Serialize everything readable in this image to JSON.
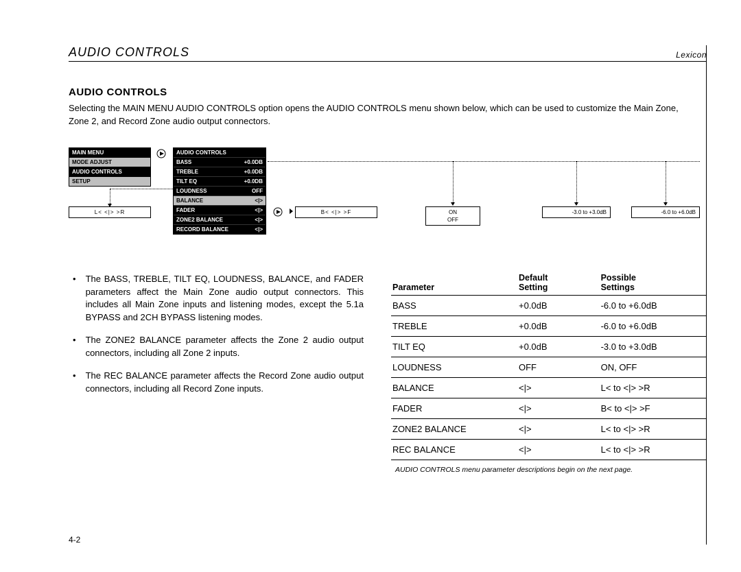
{
  "colors": {
    "text": "#000000",
    "bg": "#ffffff",
    "panel_dark": "#000000",
    "panel_grey": "#bfbfbf",
    "divider": "#000000"
  },
  "page_number": "4-2",
  "runhead": {
    "title": "AUDIO CONTROLS",
    "brand": "Lexicon"
  },
  "heading": "AUDIO CONTROLS",
  "intro": "Selecting the MAIN MENU AUDIO CONTROLS option opens the AUDIO CONTROLS menu shown below, which can be used to customize the Main Zone, Zone 2, and Record Zone audio output connectors.",
  "main_menu": {
    "title": "MAIN MENU",
    "items": [
      "MODE ADJUST",
      "AUDIO CONTROLS",
      "SETUP"
    ],
    "selected_index": 1
  },
  "ac_menu": {
    "title": "AUDIO CONTROLS",
    "rows": [
      {
        "label": "BASS",
        "value": "+0.0dB"
      },
      {
        "label": "TREBLE",
        "value": "+0.0dB"
      },
      {
        "label": "TILT EQ",
        "value": "+0.0dB"
      },
      {
        "label": "LOUDNESS",
        "value": "OFF"
      },
      {
        "label": "BALANCE",
        "value": "<|>"
      },
      {
        "label": "FADER",
        "value": "<|>"
      },
      {
        "label": "ZONE2 BALANCE",
        "value": "<|>"
      },
      {
        "label": "RECORD BALANCE",
        "value": "<|>"
      }
    ],
    "selected_index": 4
  },
  "minibox_lr": "L<        <|>        >R",
  "minibox_bf": "B<        <|>        >F",
  "minibox_onoff1": "ON",
  "minibox_onoff2": "OFF",
  "minibox_range1": "-3.0 to +3.0dB",
  "minibox_range2": "-6.0 to +6.0dB",
  "bullets": [
    "The BASS, TREBLE, TILT EQ, LOUDNESS, BALANCE, and FADER parameters affect the Main Zone audio output connectors. This includes all Main Zone inputs and listening modes, except the 5.1a BYPASS and 2CH BYPASS listening modes.",
    "The ZONE2 BALANCE parameter affects the Zone 2 audio output connectors, including all Zone 2 inputs.",
    "The REC BALANCE parameter affects the Record Zone audio output connectors, including all Record Zone inputs."
  ],
  "param_table": {
    "headers": {
      "param": "Parameter",
      "def1": "Default",
      "def2": "Setting",
      "pos1": "Possible",
      "pos2": "Settings"
    },
    "rows": [
      {
        "p": "BASS",
        "d": "+0.0dB",
        "s": "-6.0 to +6.0dB"
      },
      {
        "p": "TREBLE",
        "d": "+0.0dB",
        "s": "-6.0 to +6.0dB"
      },
      {
        "p": "TILT EQ",
        "d": "+0.0dB",
        "s": "-3.0 to +3.0dB"
      },
      {
        "p": "LOUDNESS",
        "d": "OFF",
        "s": "ON, OFF"
      },
      {
        "p": "BALANCE",
        "d": "<|>",
        "s": "L< to <|> >R"
      },
      {
        "p": "FADER",
        "d": "<|>",
        "s": "B< to <|> >F"
      },
      {
        "p": "ZONE2 BALANCE",
        "d": "<|>",
        "s": "L< to <|> >R"
      },
      {
        "p": "REC BALANCE",
        "d": "<|>",
        "s": "L< to <|> >R"
      }
    ]
  },
  "table_note": "AUDIO CONTROLS menu parameter descriptions begin on the next page."
}
